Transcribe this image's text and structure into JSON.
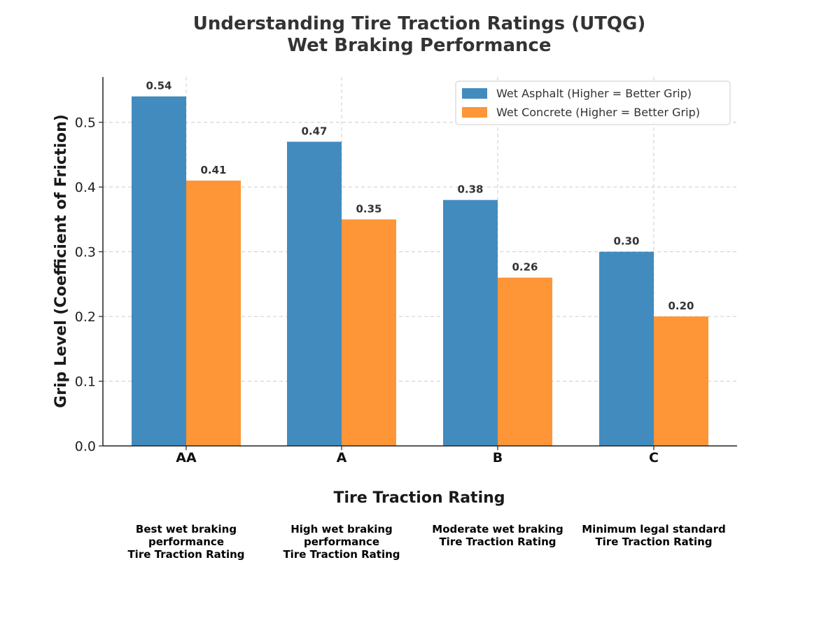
{
  "chart_data": {
    "type": "bar",
    "title": [
      "Understanding Tire Traction Ratings (UTQG)",
      "Wet Braking Performance"
    ],
    "xlabel": "Tire Traction Rating",
    "ylabel": "Grip Level (Coefficient of Friction)",
    "categories": [
      "AA",
      "A",
      "B",
      "C"
    ],
    "category_descriptions": [
      [
        "Best wet braking",
        "performance",
        "Tire Traction Rating"
      ],
      [
        "High wet braking",
        "performance",
        "Tire Traction Rating"
      ],
      [
        "Moderate wet braking",
        "Tire Traction Rating"
      ],
      [
        "Minimum legal standard",
        "Tire Traction Rating"
      ]
    ],
    "series": [
      {
        "name": "Wet Asphalt (Higher = Better Grip)",
        "color": "#428bbf",
        "values": [
          0.54,
          0.47,
          0.38,
          0.3
        ],
        "labels": [
          "0.54",
          "0.47",
          "0.38",
          "0.30"
        ]
      },
      {
        "name": "Wet Concrete (Higher = Better Grip)",
        "color": "#fe9536",
        "values": [
          0.41,
          0.35,
          0.26,
          0.2
        ],
        "labels": [
          "0.41",
          "0.35",
          "0.26",
          "0.20"
        ]
      }
    ],
    "ylim": [
      0,
      0.57
    ],
    "yticks": [
      0.0,
      0.1,
      0.2,
      0.3,
      0.4,
      0.5
    ],
    "ytick_labels": [
      "0.0",
      "0.1",
      "0.2",
      "0.3",
      "0.4",
      "0.5"
    ],
    "grid": true,
    "legend_position": "top-right"
  }
}
